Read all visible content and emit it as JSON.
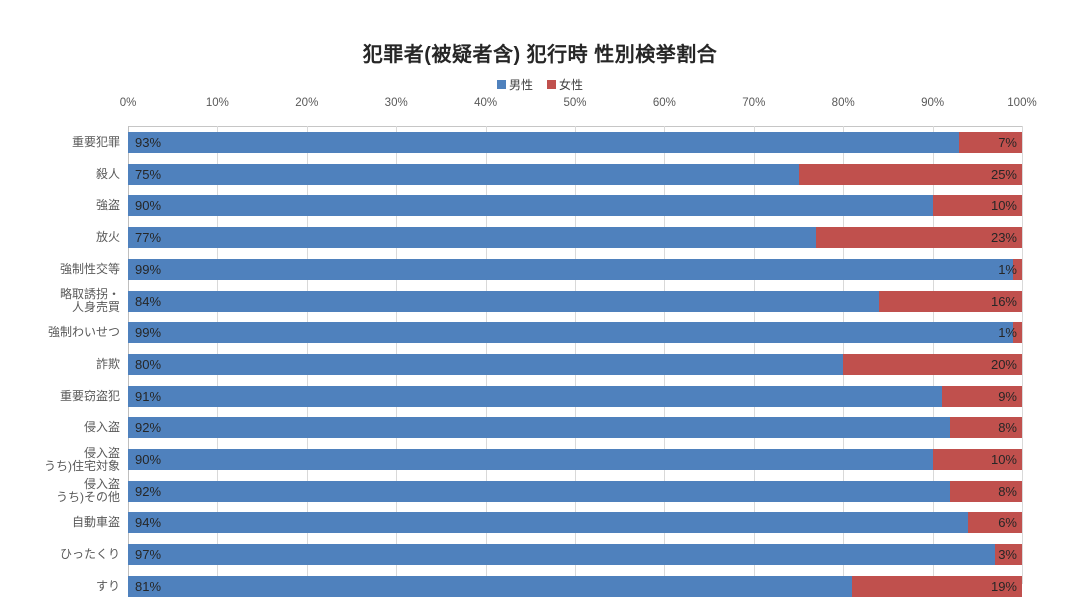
{
  "page": {
    "background": "#FFFFFF"
  },
  "chart_data": {
    "type": "bar",
    "orientation": "horizontal",
    "stacked": true,
    "title": "犯罪者(被疑者含) 犯行時 性別検挙割合",
    "legend_position": "top",
    "grid": true,
    "xlim": [
      0,
      100
    ],
    "x_tick_labels": [
      "0%",
      "10%",
      "20%",
      "30%",
      "40%",
      "50%",
      "60%",
      "70%",
      "80%",
      "90%",
      "100%"
    ],
    "categories": [
      "重要犯罪",
      "殺人",
      "強盗",
      "放火",
      "強制性交等",
      "略取誘拐・\n人身売買",
      "強制わいせつ",
      "詐欺",
      "重要窃盗犯",
      "侵入盗",
      "侵入盗\nうち)住宅対象",
      "侵入盗\nうち)その他",
      "自動車盗",
      "ひったくり",
      "すり"
    ],
    "series": [
      {
        "name": "男性",
        "color": "#4F81BD",
        "values": [
          93,
          75,
          90,
          77,
          99,
          84,
          99,
          80,
          91,
          92,
          90,
          92,
          94,
          97,
          81
        ]
      },
      {
        "name": "女性",
        "color": "#C0504D",
        "values": [
          7,
          25,
          10,
          23,
          1,
          16,
          1,
          20,
          9,
          8,
          10,
          8,
          6,
          3,
          19
        ]
      }
    ]
  }
}
